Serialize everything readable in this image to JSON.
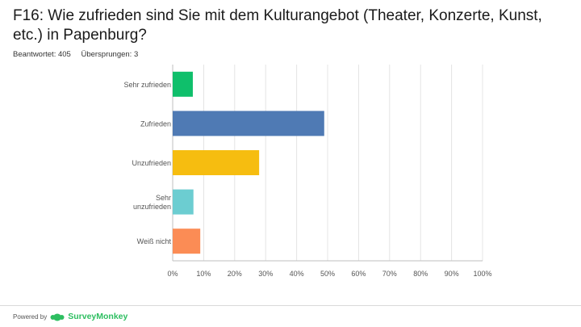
{
  "question": {
    "title": "F16: Wie zufrieden sind Sie mit dem Kulturangebot (Theater, Konzerte, Kunst, etc.) in Papenburg?"
  },
  "stats": {
    "answered": "Beantwortet: 405",
    "skipped": "Übersprungen: 3"
  },
  "footer": {
    "powered_by": "Powered by",
    "brand": "SurveyMonkey",
    "brand_color": "#2dbe60"
  },
  "chart_data": {
    "type": "bar",
    "orientation": "horizontal",
    "title": "",
    "xlabel": "",
    "ylabel": "",
    "categories": [
      [
        "Sehr zufrieden"
      ],
      [
        "Zufrieden"
      ],
      [
        "Unzufrieden"
      ],
      [
        "Sehr",
        "unzufrieden"
      ],
      [
        "Weiß nicht"
      ]
    ],
    "values": [
      6.5,
      48.9,
      27.9,
      6.7,
      8.9
    ],
    "colors": [
      "#0fbf6b",
      "#4f7ab4",
      "#f6bd10",
      "#6ccdd1",
      "#fb8c55"
    ],
    "xlim": [
      0,
      100
    ],
    "ticks": [
      0,
      10,
      20,
      30,
      40,
      50,
      60,
      70,
      80,
      90,
      100
    ],
    "tick_labels": [
      "0%",
      "10%",
      "20%",
      "30%",
      "40%",
      "50%",
      "60%",
      "70%",
      "80%",
      "90%",
      "100%"
    ],
    "grid": true
  }
}
